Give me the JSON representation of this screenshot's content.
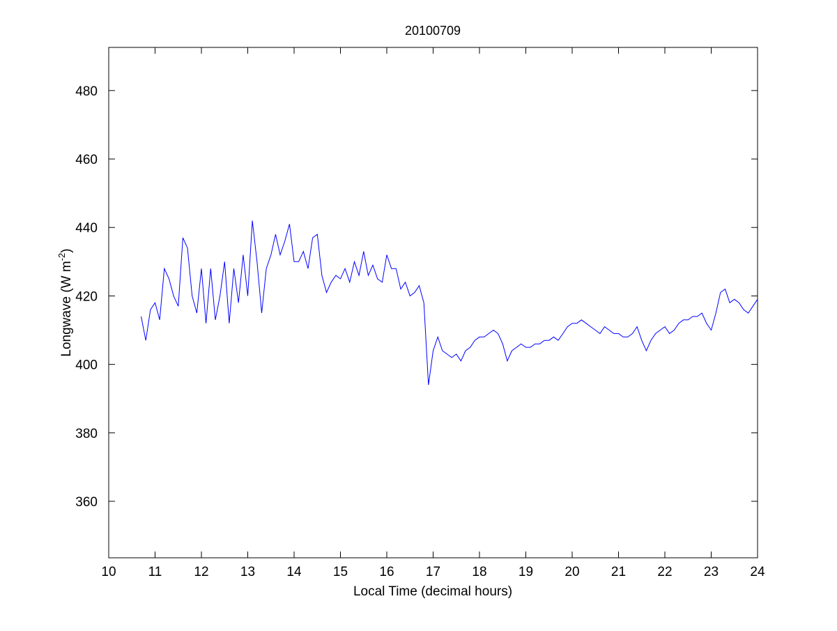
{
  "chart_data": {
    "type": "line",
    "title": "20100709",
    "xlabel": "Local Time (decimal hours)",
    "ylabel": "Longwave (W m",
    "ylabel_sup": "-2",
    "ylabel_close": ")",
    "xlim": [
      10,
      24
    ],
    "ylim": [
      343.5,
      492.6
    ],
    "xticks": [
      10,
      11,
      12,
      13,
      14,
      15,
      16,
      17,
      18,
      19,
      20,
      21,
      22,
      23,
      24
    ],
    "yticks": [
      360,
      380,
      400,
      420,
      440,
      460,
      480
    ],
    "grid": false,
    "line_color": "#0000ff",
    "series": [
      {
        "name": "Longwave",
        "x": [
          10.7,
          10.8,
          10.9,
          11.0,
          11.1,
          11.2,
          11.3,
          11.4,
          11.5,
          11.6,
          11.7,
          11.8,
          11.9,
          12.0,
          12.1,
          12.2,
          12.3,
          12.4,
          12.5,
          12.6,
          12.7,
          12.8,
          12.9,
          13.0,
          13.1,
          13.2,
          13.3,
          13.4,
          13.5,
          13.6,
          13.7,
          13.8,
          13.9,
          14.0,
          14.1,
          14.2,
          14.3,
          14.4,
          14.5,
          14.6,
          14.7,
          14.8,
          14.9,
          15.0,
          15.1,
          15.2,
          15.3,
          15.4,
          15.5,
          15.6,
          15.7,
          15.8,
          15.9,
          16.0,
          16.1,
          16.2,
          16.3,
          16.4,
          16.5,
          16.6,
          16.7,
          16.8,
          16.9,
          17.0,
          17.1,
          17.2,
          17.3,
          17.4,
          17.5,
          17.6,
          17.7,
          17.8,
          17.9,
          18.0,
          18.1,
          18.2,
          18.3,
          18.4,
          18.5,
          18.6,
          18.7,
          18.8,
          18.9,
          19.0,
          19.1,
          19.2,
          19.3,
          19.4,
          19.5,
          19.6,
          19.7,
          19.8,
          19.9,
          20.0,
          20.1,
          20.2,
          20.3,
          20.4,
          20.5,
          20.6,
          20.7,
          20.8,
          20.9,
          21.0,
          21.1,
          21.2,
          21.3,
          21.4,
          21.5,
          21.6,
          21.7,
          21.8,
          21.9,
          22.0,
          22.1,
          22.2,
          22.3,
          22.4,
          22.5,
          22.6,
          22.7,
          22.8,
          22.9,
          23.0,
          23.1,
          23.2,
          23.3,
          23.4,
          23.5,
          23.6,
          23.7,
          23.8,
          23.9,
          24.0
        ],
        "y": [
          414,
          407,
          416,
          418,
          413,
          428,
          425,
          420,
          417,
          437,
          434,
          420,
          415,
          428,
          412,
          428,
          413,
          420,
          430,
          412,
          428,
          418,
          432,
          420,
          442,
          430,
          415,
          428,
          432,
          438,
          432,
          436,
          441,
          430,
          430,
          433,
          428,
          437,
          438,
          426,
          421,
          424,
          426,
          425,
          428,
          424,
          430,
          426,
          433,
          426,
          429,
          425,
          424,
          432,
          428,
          428,
          422,
          424,
          420,
          421,
          423,
          418,
          394,
          404,
          408,
          404,
          403,
          402,
          403,
          401,
          404,
          405,
          407,
          408,
          408,
          409,
          410,
          409,
          406,
          401,
          404,
          405,
          406,
          405,
          405,
          406,
          406,
          407,
          407,
          408,
          407,
          409,
          411,
          412,
          412,
          413,
          412,
          411,
          410,
          409,
          411,
          410,
          409,
          409,
          408,
          408,
          409,
          411,
          407,
          404,
          407,
          409,
          410,
          411,
          409,
          410,
          412,
          413,
          413,
          414,
          414,
          415,
          412,
          410,
          415,
          421,
          422,
          418,
          419,
          418,
          416,
          415,
          417,
          419
        ]
      }
    ]
  }
}
